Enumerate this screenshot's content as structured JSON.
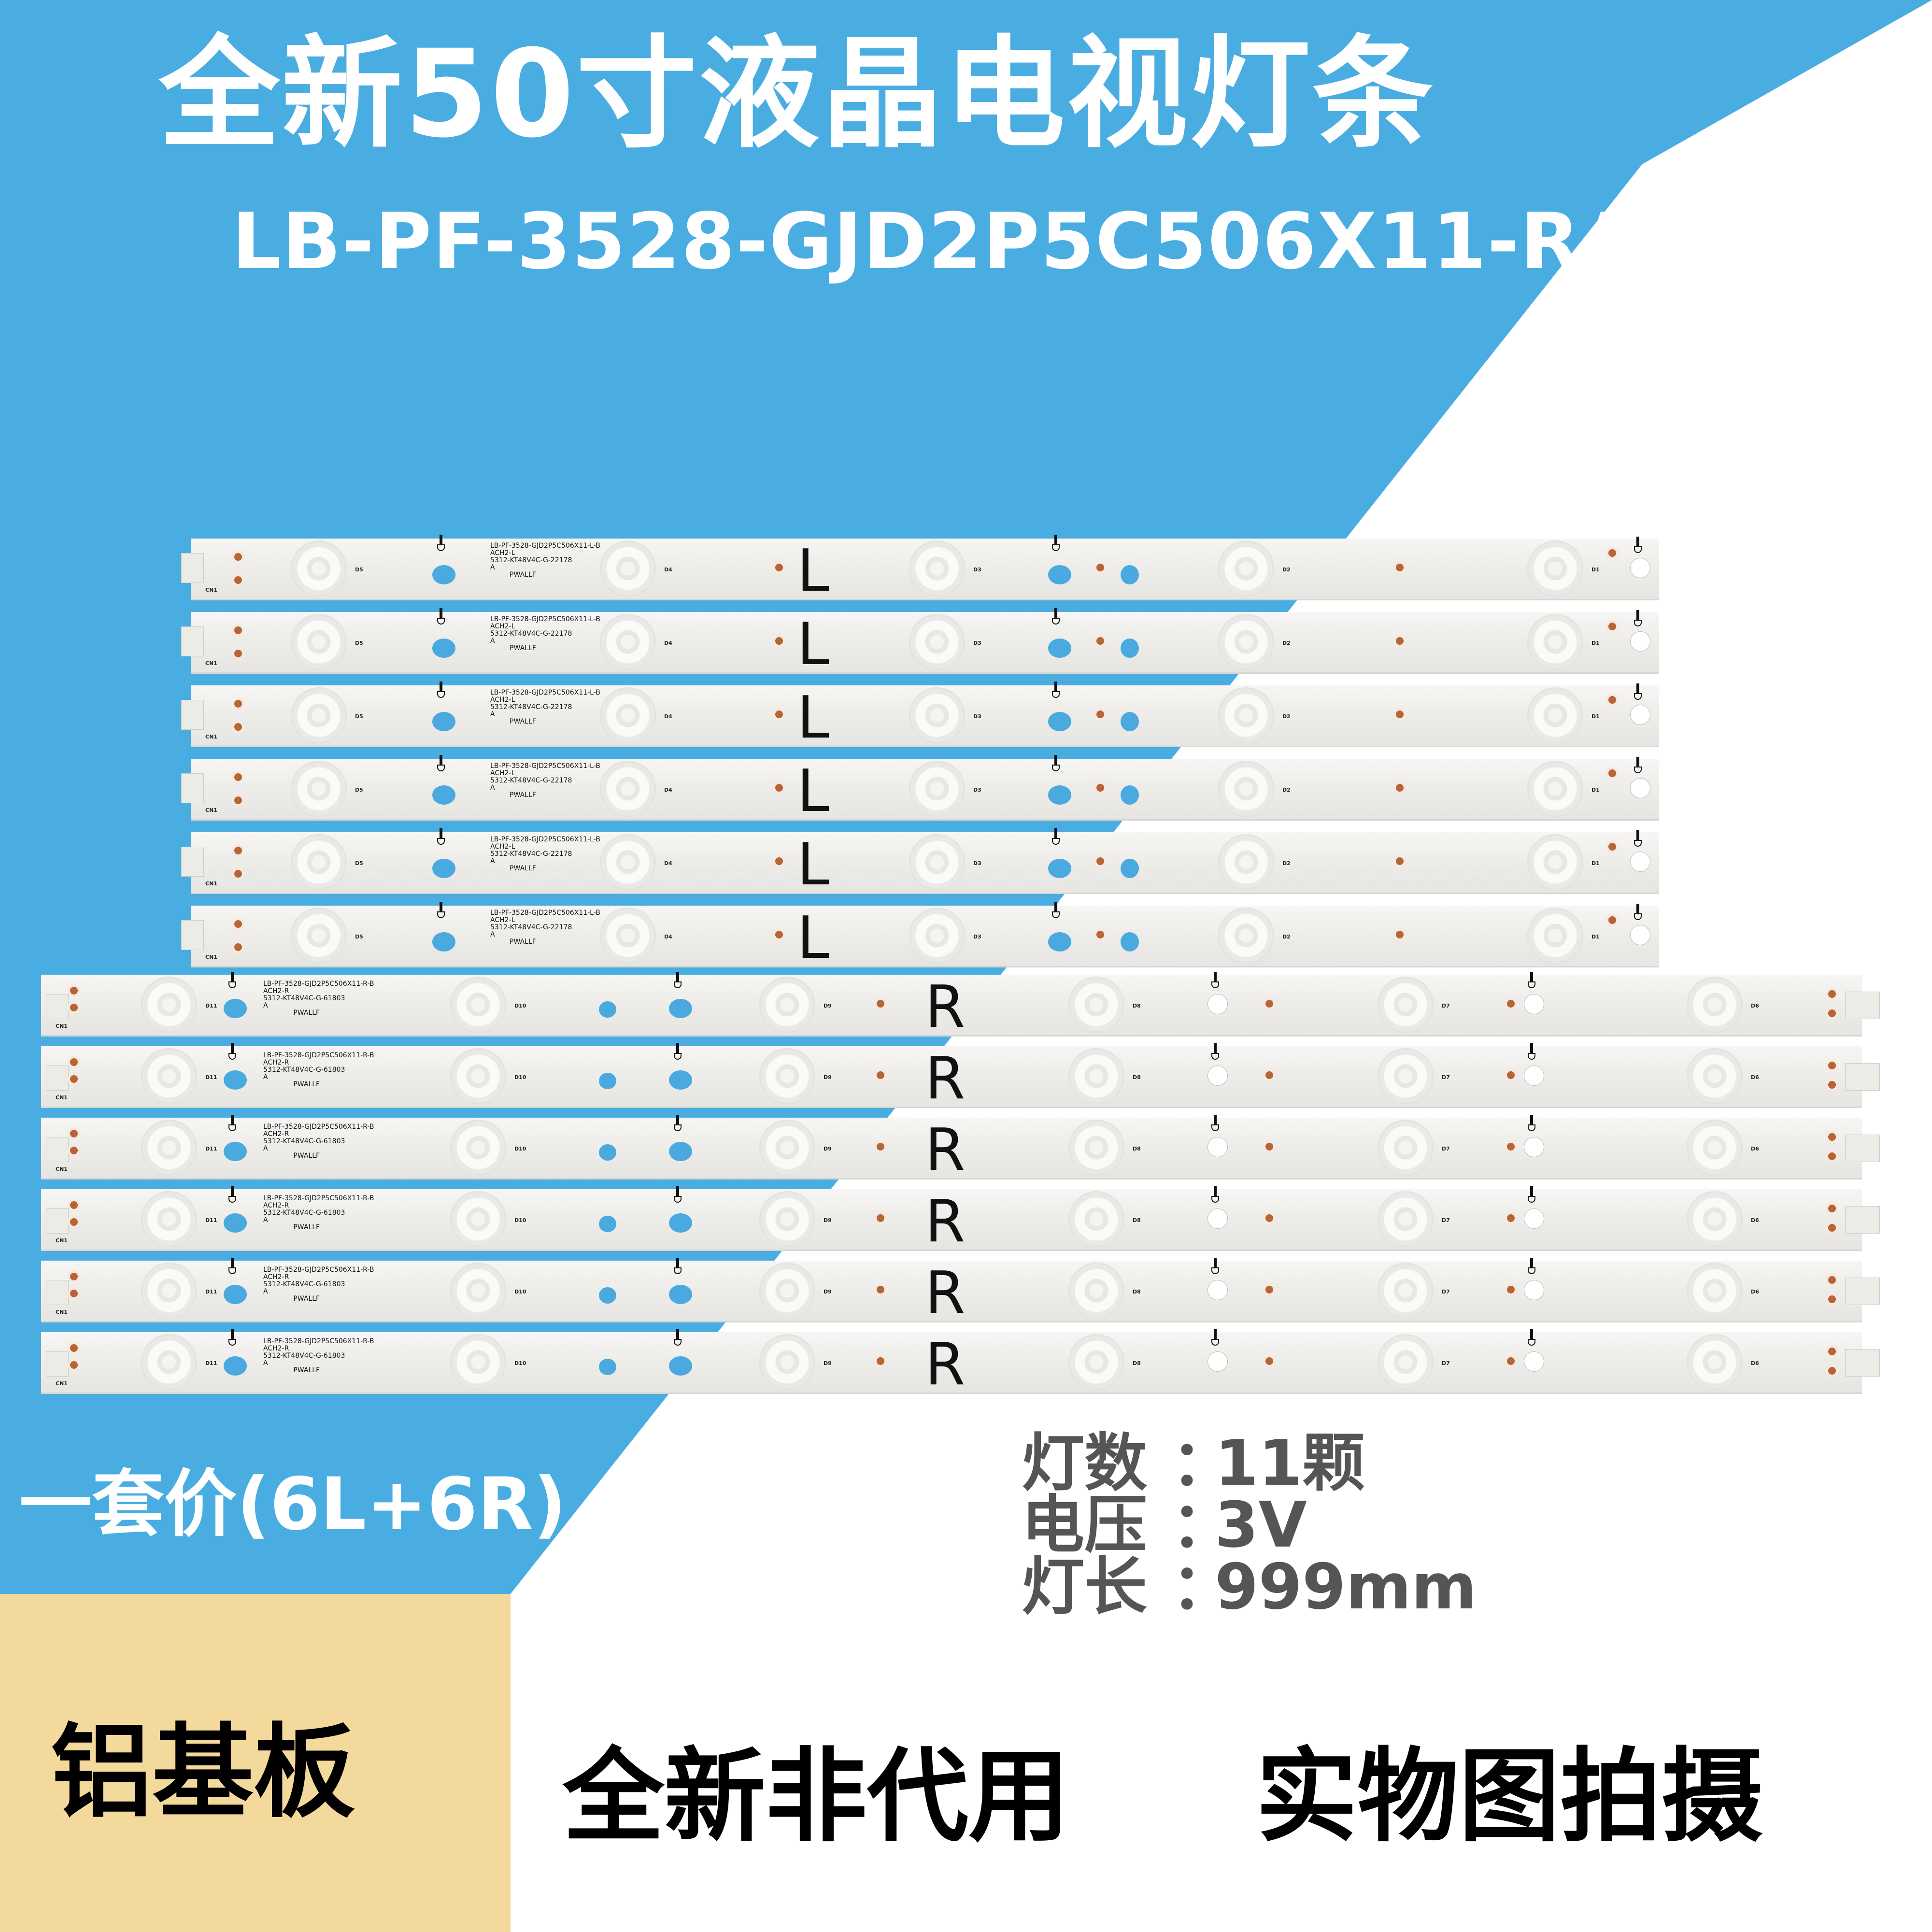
{
  "colors": {
    "blue": "#4aade2",
    "beige": "#f3d99c",
    "white": "#ffffff",
    "spec_text": "#555555",
    "black": "#000000"
  },
  "header": {
    "title": "全新50寸液晶电视灯条",
    "model": "LB-PF-3528-GJD2P5C506X11-R/L-B"
  },
  "strips": {
    "left": {
      "count": 6,
      "side_letter": "L",
      "silk_line1": "LB-PF-3528-GJD2P5C506X11-L-B",
      "silk_line2": "ACH2-L",
      "silk_line3": "5312-KT48V4C-G-22178",
      "silk_line4": "A",
      "silk_mark": "PWALLF",
      "connector_label": "CN1",
      "led_labels": [
        "D5",
        "D4",
        "D3",
        "D2",
        "D1"
      ]
    },
    "right": {
      "count": 6,
      "side_letter": "R",
      "silk_line1": "LB-PF-3528-GJD2P5C506X11-R-B",
      "silk_line2": "ACH2-R",
      "silk_line3": "5312-KT48V4C-G-61803",
      "silk_line4": "A",
      "silk_mark": "PWALLF",
      "connector_label": "CN1",
      "led_labels": [
        "D11",
        "D10",
        "D9",
        "D8",
        "D7",
        "D6"
      ]
    }
  },
  "set_price": "一套价(6L+6R)",
  "specs": [
    {
      "label": "灯数",
      "sep": "：",
      "value": "11颗"
    },
    {
      "label": "电压",
      "sep": "：",
      "value": "3V"
    },
    {
      "label": "灯长",
      "sep": "：",
      "value": "999mm"
    }
  ],
  "badges": {
    "material": "铝基板",
    "new_genuine": "全新非代用",
    "real_photo": "实物图拍摄"
  }
}
